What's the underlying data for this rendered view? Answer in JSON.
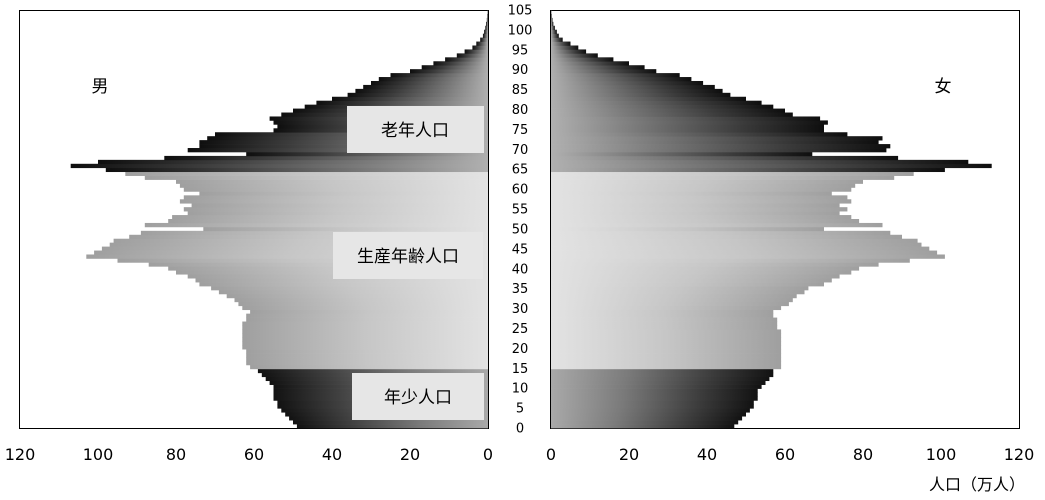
{
  "chart_data": {
    "type": "bar",
    "orientation": "population-pyramid",
    "unit_label": "人口（万人）",
    "sex_labels": {
      "male": "男",
      "female": "女"
    },
    "group_labels": {
      "elderly": "老年人口",
      "working": "生産年齢人口",
      "young": "年少人口"
    },
    "x_ticks": [
      0,
      20,
      40,
      60,
      80,
      100,
      120
    ],
    "xlim": [
      0,
      120
    ],
    "y_ticks": [
      0,
      5,
      10,
      15,
      20,
      25,
      30,
      35,
      40,
      45,
      50,
      55,
      60,
      65,
      70,
      75,
      80,
      85,
      90,
      95,
      100,
      105
    ],
    "ylim": [
      0,
      105
    ],
    "age_groups": [
      {
        "name": "young",
        "from": 0,
        "to": 14
      },
      {
        "name": "working",
        "from": 15,
        "to": 64
      },
      {
        "name": "elderly",
        "from": 65,
        "to": 105
      }
    ],
    "ages": [
      0,
      1,
      2,
      3,
      4,
      5,
      6,
      7,
      8,
      9,
      10,
      11,
      12,
      13,
      14,
      15,
      16,
      17,
      18,
      19,
      20,
      21,
      22,
      23,
      24,
      25,
      26,
      27,
      28,
      29,
      30,
      31,
      32,
      33,
      34,
      35,
      36,
      37,
      38,
      39,
      40,
      41,
      42,
      43,
      44,
      45,
      46,
      47,
      48,
      49,
      50,
      51,
      52,
      53,
      54,
      55,
      56,
      57,
      58,
      59,
      60,
      61,
      62,
      63,
      64,
      65,
      66,
      67,
      68,
      69,
      70,
      71,
      72,
      73,
      74,
      75,
      76,
      77,
      78,
      79,
      80,
      81,
      82,
      83,
      84,
      85,
      86,
      87,
      88,
      89,
      90,
      91,
      92,
      93,
      94,
      95,
      96,
      97,
      98,
      99,
      100,
      101,
      102,
      103,
      104,
      105
    ],
    "series": [
      {
        "name": "男",
        "values": [
          49,
          50,
          51,
          52,
          53,
          54,
          54,
          55,
          55,
          55,
          55,
          56,
          57,
          58,
          59,
          61,
          62,
          62,
          62,
          62,
          63,
          63,
          63,
          63,
          63,
          63,
          63,
          62,
          62,
          61,
          63,
          64,
          65,
          67,
          69,
          71,
          74,
          75,
          77,
          80,
          82,
          87,
          95,
          103,
          101,
          99,
          97,
          96,
          92,
          89,
          73,
          88,
          82,
          81,
          77,
          78,
          76,
          79,
          78,
          74,
          78,
          79,
          80,
          88,
          93,
          98,
          107,
          100,
          83,
          62,
          77,
          74,
          74,
          72,
          70,
          55,
          54,
          55,
          56,
          53,
          50,
          47,
          44,
          40,
          36,
          34,
          32,
          30,
          28,
          25,
          20,
          17,
          14,
          11,
          8,
          6,
          4,
          3,
          2,
          1.3,
          1,
          0.7,
          0.5,
          0.3,
          0.2,
          0.1
        ]
      },
      {
        "name": "女",
        "values": [
          47,
          48,
          49,
          50,
          51,
          52,
          52,
          53,
          53,
          53,
          54,
          55,
          56,
          57,
          57,
          59,
          59,
          59,
          59,
          59,
          59,
          59,
          59,
          59,
          59,
          58,
          58,
          58,
          57,
          57,
          59,
          61,
          62,
          63,
          65,
          66,
          70,
          72,
          74,
          77,
          79,
          84,
          92,
          101,
          99,
          97,
          95,
          94,
          90,
          87,
          70,
          85,
          79,
          77,
          74,
          76,
          74,
          77,
          76,
          72,
          77,
          78,
          80,
          88,
          93,
          101,
          113,
          107,
          89,
          67,
          86,
          87,
          84,
          85,
          76,
          70,
          70,
          71,
          69,
          62,
          60,
          57,
          54,
          50,
          46,
          44,
          42,
          39,
          36,
          33,
          27,
          24,
          20,
          16,
          12,
          9,
          7,
          5,
          3,
          2,
          1.5,
          1,
          0.6,
          0.4,
          0.2,
          0.1
        ]
      }
    ]
  }
}
